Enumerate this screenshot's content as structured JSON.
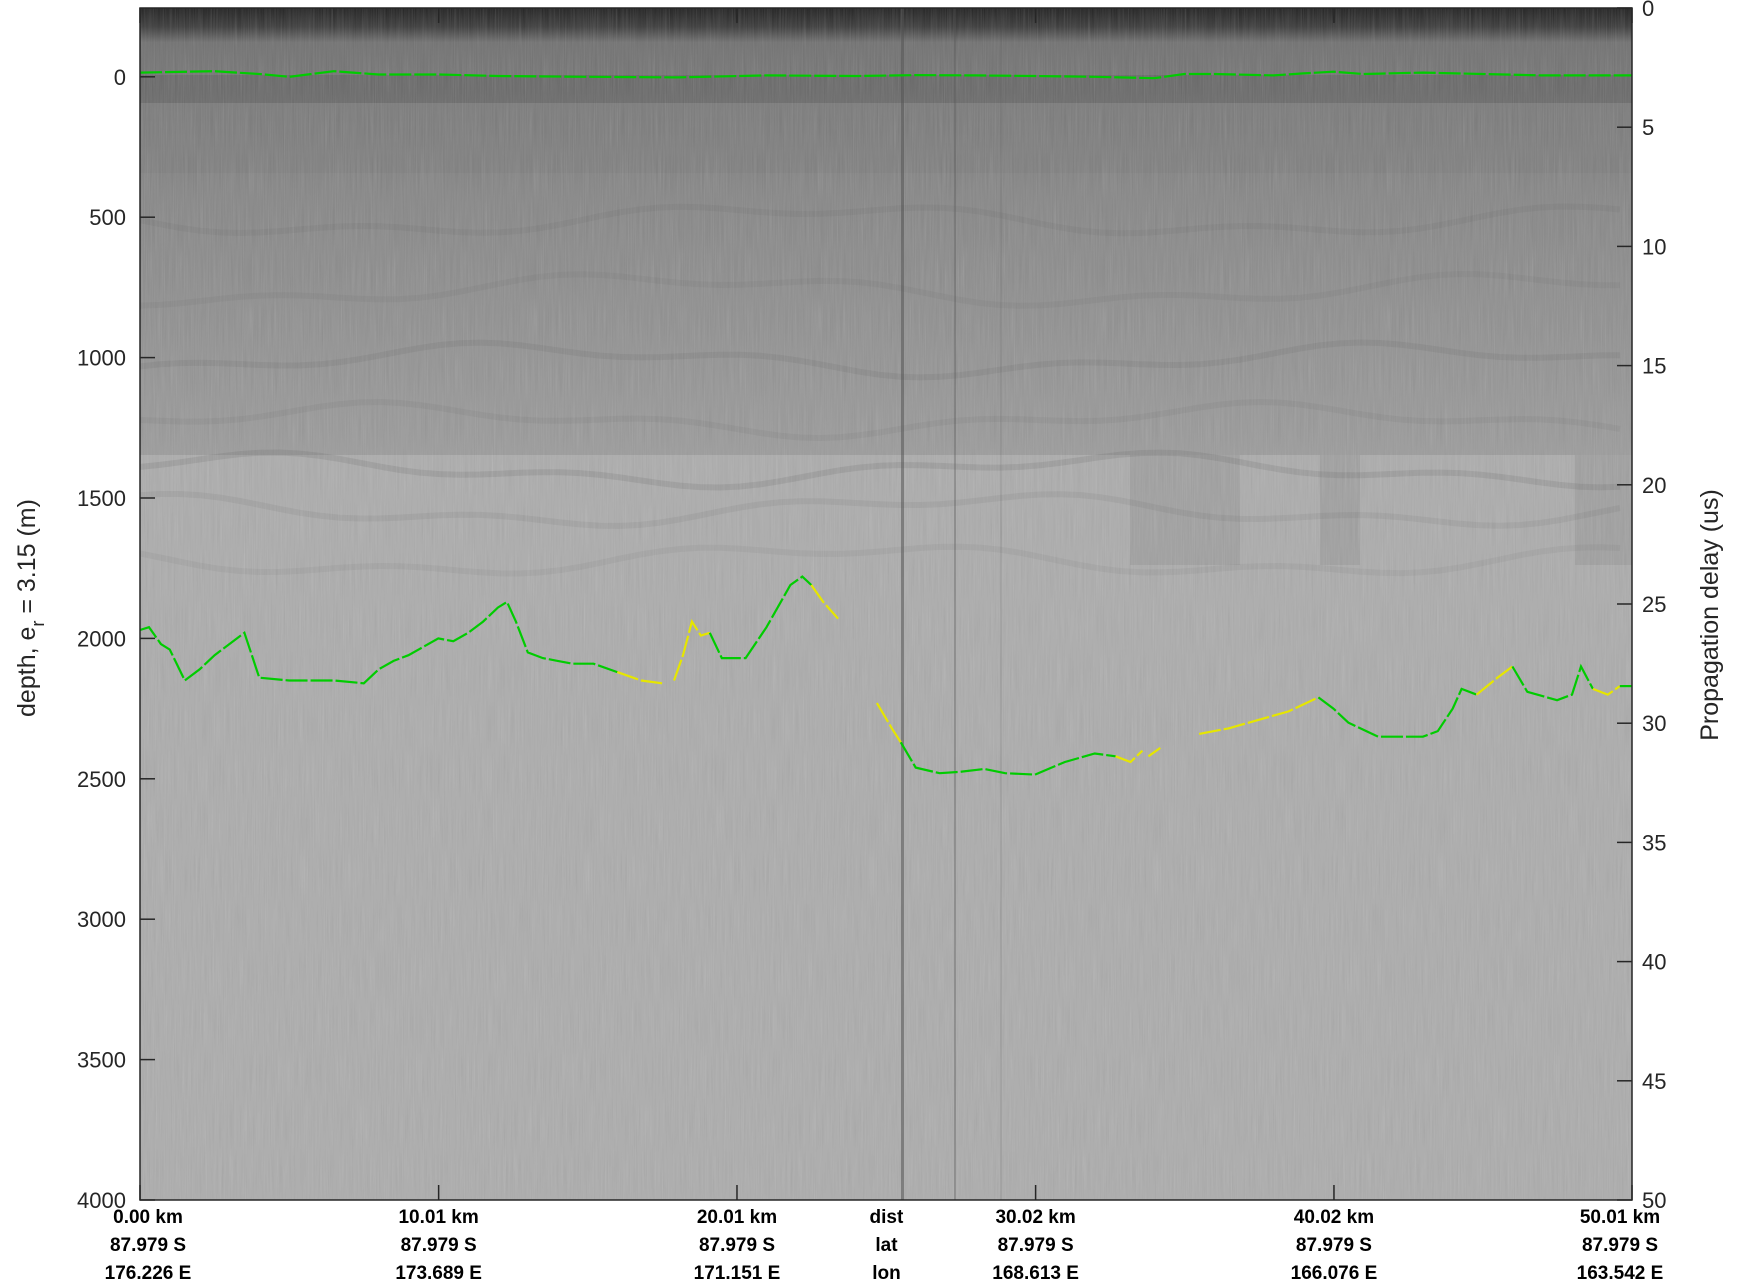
{
  "chart_data": {
    "type": "radargram",
    "left_axis": {
      "label_parts": [
        "depth, e",
        "r",
        " = 3.15 (m)"
      ],
      "ticks": [
        "0",
        "500",
        "1000",
        "1500",
        "2000",
        "2500",
        "3000",
        "3500",
        "4000"
      ],
      "values": [
        0,
        500,
        1000,
        1500,
        2000,
        2500,
        3000,
        3500,
        4000
      ],
      "range": [
        -245,
        4000
      ]
    },
    "right_axis": {
      "label": "Propagation delay (us)",
      "ticks": [
        "0",
        "5",
        "10",
        "15",
        "20",
        "25",
        "30",
        "35",
        "40",
        "45",
        "50"
      ],
      "values": [
        0,
        5,
        10,
        15,
        20,
        25,
        30,
        35,
        40,
        45,
        50
      ],
      "range": [
        0,
        50
      ]
    },
    "x_range_km": [
      0,
      50.01
    ],
    "along_track": [
      {
        "km": 0.0,
        "dist": "0.00 km",
        "lat": "87.979 S",
        "lon": "176.226 E"
      },
      {
        "km": 10.01,
        "dist": "10.01 km",
        "lat": "87.979 S",
        "lon": "173.689 E"
      },
      {
        "km": 20.01,
        "dist": "20.01 km",
        "lat": "87.979 S",
        "lon": "171.151 E"
      },
      {
        "km": 30.02,
        "dist": "30.02 km",
        "lat": "87.979 S",
        "lon": "168.613 E"
      },
      {
        "km": 40.02,
        "dist": "40.02 km",
        "lat": "87.979 S",
        "lon": "166.076 E"
      },
      {
        "km": 50.01,
        "dist": "50.01 km",
        "lat": "87.979 S",
        "lon": "163.542 E"
      }
    ],
    "row_headers": {
      "dist": "dist",
      "lat": "lat",
      "lon": "lon",
      "position_km": 25.02
    },
    "surface_pick": {
      "color": "#00cc00",
      "points": [
        [
          0,
          -15
        ],
        [
          2.5,
          -20
        ],
        [
          4,
          -10
        ],
        [
          5,
          0
        ],
        [
          6.5,
          -20
        ],
        [
          8,
          -8
        ],
        [
          10,
          -8
        ],
        [
          12,
          -3
        ],
        [
          15,
          0
        ],
        [
          18,
          2
        ],
        [
          21,
          -5
        ],
        [
          24,
          -3
        ],
        [
          26,
          -6
        ],
        [
          28,
          -5
        ],
        [
          30,
          -3
        ],
        [
          32,
          0
        ],
        [
          34,
          5
        ],
        [
          35,
          -10
        ],
        [
          36,
          -10
        ],
        [
          38,
          -5
        ],
        [
          39,
          -12
        ],
        [
          40,
          -18
        ],
        [
          41,
          -10
        ],
        [
          43,
          -15
        ],
        [
          45,
          -10
        ],
        [
          47,
          -5
        ],
        [
          50.01,
          -5
        ]
      ]
    },
    "bed_pick_segments": [
      {
        "color": "#00cc00",
        "points": [
          [
            0,
            1970
          ],
          [
            0.3,
            1960
          ],
          [
            0.7,
            2020
          ],
          [
            1.0,
            2040
          ],
          [
            1.5,
            2150
          ],
          [
            2.0,
            2110
          ],
          [
            2.5,
            2060
          ],
          [
            3.0,
            2020
          ],
          [
            3.5,
            1980
          ],
          [
            4.0,
            2140
          ],
          [
            5.0,
            2150
          ],
          [
            6.5,
            2150
          ],
          [
            7.5,
            2160
          ],
          [
            8.0,
            2110
          ],
          [
            8.5,
            2080
          ],
          [
            9.0,
            2060
          ],
          [
            9.5,
            2030
          ],
          [
            10.0,
            2000
          ],
          [
            10.5,
            2010
          ],
          [
            11.0,
            1980
          ],
          [
            11.5,
            1940
          ],
          [
            12.0,
            1890
          ],
          [
            12.3,
            1870
          ],
          [
            12.6,
            1940
          ],
          [
            13.0,
            2050
          ],
          [
            13.5,
            2070
          ],
          [
            14.0,
            2080
          ],
          [
            14.5,
            2090
          ],
          [
            15.2,
            2090
          ],
          [
            16.0,
            2120
          ]
        ]
      },
      {
        "color": "#e6e600",
        "points": [
          [
            16.0,
            2120
          ],
          [
            16.8,
            2150
          ],
          [
            17.5,
            2160
          ]
        ]
      },
      {
        "color": "#e6e600",
        "points": [
          [
            17.9,
            2150
          ],
          [
            18.2,
            2060
          ],
          [
            18.5,
            1940
          ],
          [
            18.8,
            1990
          ],
          [
            19.1,
            1980
          ]
        ]
      },
      {
        "color": "#00cc00",
        "points": [
          [
            19.1,
            1980
          ],
          [
            19.5,
            2070
          ],
          [
            20.3,
            2070
          ],
          [
            21.0,
            1960
          ],
          [
            21.8,
            1810
          ],
          [
            22.2,
            1780
          ],
          [
            22.5,
            1810
          ]
        ]
      },
      {
        "color": "#e6e600",
        "points": [
          [
            22.5,
            1810
          ],
          [
            22.9,
            1870
          ],
          [
            23.4,
            1930
          ]
        ]
      },
      {
        "color": "#e6e600",
        "points": [
          [
            24.7,
            2230
          ],
          [
            25.2,
            2320
          ],
          [
            25.5,
            2370
          ]
        ]
      },
      {
        "color": "#00cc00",
        "points": [
          [
            25.5,
            2370
          ],
          [
            26.0,
            2460
          ],
          [
            26.8,
            2480
          ],
          [
            27.5,
            2475
          ],
          [
            28.3,
            2465
          ],
          [
            29.0,
            2480
          ],
          [
            30.0,
            2485
          ],
          [
            31.0,
            2440
          ],
          [
            32.0,
            2410
          ],
          [
            32.7,
            2420
          ]
        ]
      },
      {
        "color": "#e6e600",
        "points": [
          [
            32.7,
            2420
          ],
          [
            33.2,
            2440
          ],
          [
            33.6,
            2400
          ]
        ]
      },
      {
        "color": "#e6e600",
        "points": [
          [
            33.8,
            2420
          ],
          [
            34.2,
            2390
          ]
        ]
      },
      {
        "color": "#e6e600",
        "points": [
          [
            35.5,
            2340
          ],
          [
            36.5,
            2320
          ],
          [
            37.5,
            2290
          ],
          [
            38.5,
            2260
          ],
          [
            39.5,
            2210
          ]
        ]
      },
      {
        "color": "#00cc00",
        "points": [
          [
            39.5,
            2210
          ],
          [
            40.0,
            2250
          ],
          [
            40.5,
            2300
          ],
          [
            41.5,
            2350
          ],
          [
            43.0,
            2350
          ],
          [
            43.5,
            2330
          ],
          [
            44.0,
            2250
          ],
          [
            44.3,
            2180
          ],
          [
            44.8,
            2200
          ]
        ]
      },
      {
        "color": "#e6e600",
        "points": [
          [
            44.8,
            2200
          ],
          [
            45.5,
            2140
          ],
          [
            46.0,
            2100
          ]
        ]
      },
      {
        "color": "#00cc00",
        "points": [
          [
            46.0,
            2100
          ],
          [
            46.5,
            2190
          ],
          [
            47.5,
            2220
          ],
          [
            48.0,
            2200
          ],
          [
            48.3,
            2100
          ],
          [
            48.7,
            2180
          ]
        ]
      },
      {
        "color": "#e6e600",
        "points": [
          [
            48.7,
            2180
          ],
          [
            49.2,
            2200
          ],
          [
            49.6,
            2170
          ]
        ]
      },
      {
        "color": "#00cc00",
        "points": [
          [
            49.6,
            2170
          ],
          [
            50.01,
            2170
          ]
        ]
      }
    ]
  }
}
